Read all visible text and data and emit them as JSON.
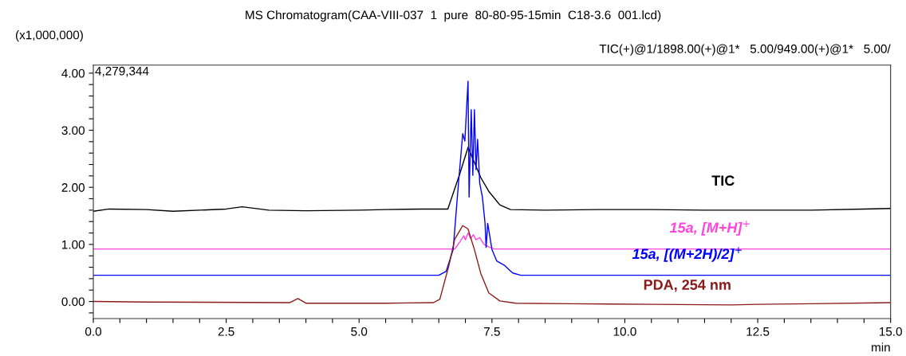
{
  "chart_data": {
    "type": "line",
    "title": "MS Chromatogram(CAA-VIII-037  1  pure  80-80-95-15min  C18-3.6  001.lcd)",
    "subtitle": "TIC(+)@1/1898.00(+)@1*   5.00/949.00(+)@1*   5.00/",
    "ylabel": "(x1,000,000)",
    "xlabel": "min",
    "annotations": [
      "4,279,344"
    ],
    "xlim": [
      0,
      15
    ],
    "ylim": [
      -0.3,
      4.14
    ],
    "xticks": [
      {
        "value": 0,
        "label": "0.0"
      },
      {
        "value": 0.5,
        "label": null
      },
      {
        "value": 1.0,
        "label": null
      },
      {
        "value": 1.5,
        "label": null
      },
      {
        "value": 2.0,
        "label": null
      },
      2.5,
      {
        "value": 3.0,
        "label": null
      },
      {
        "value": 3.5,
        "label": null
      },
      {
        "value": 4.0,
        "label": null
      },
      {
        "value": 4.5,
        "label": null
      },
      {
        "value": 5,
        "label": "5.0"
      },
      {
        "value": 5.5,
        "label": null
      },
      {
        "value": 6.0,
        "label": null
      },
      {
        "value": 6.5,
        "label": null
      },
      {
        "value": 7.0,
        "label": null
      },
      7.5,
      {
        "value": 8.0,
        "label": null
      },
      {
        "value": 8.5,
        "label": null
      },
      {
        "value": 9.0,
        "label": null
      },
      {
        "value": 9.5,
        "label": null
      },
      {
        "value": 10,
        "label": "10.0"
      },
      {
        "value": 10.5,
        "label": null
      },
      {
        "value": 11.0,
        "label": null
      },
      {
        "value": 11.5,
        "label": null
      },
      {
        "value": 12.0,
        "label": null
      },
      12.5,
      {
        "value": 13.0,
        "label": null
      },
      {
        "value": 13.5,
        "label": null
      },
      {
        "value": 14.0,
        "label": null
      },
      {
        "value": 14.5,
        "label": null
      },
      {
        "value": 15,
        "label": "15.0"
      }
    ],
    "yticks": [
      {
        "value": -0.2,
        "label": null
      },
      {
        "value": 0,
        "label": "0.00"
      },
      {
        "value": 0.2,
        "label": null
      },
      {
        "value": 0.4,
        "label": null
      },
      {
        "value": 0.6,
        "label": null
      },
      {
        "value": 0.8,
        "label": null
      },
      {
        "value": 1,
        "label": "1.00"
      },
      {
        "value": 1.2,
        "label": null
      },
      {
        "value": 1.4,
        "label": null
      },
      {
        "value": 1.6,
        "label": null
      },
      {
        "value": 1.8,
        "label": null
      },
      {
        "value": 2,
        "label": "2.00"
      },
      {
        "value": 2.2,
        "label": null
      },
      {
        "value": 2.4,
        "label": null
      },
      {
        "value": 2.6,
        "label": null
      },
      {
        "value": 2.8,
        "label": null
      },
      {
        "value": 3,
        "label": "3.00"
      },
      {
        "value": 3.2,
        "label": null
      },
      {
        "value": 3.4,
        "label": null
      },
      {
        "value": 3.6,
        "label": null
      },
      {
        "value": 3.8,
        "label": null
      },
      {
        "value": 4,
        "label": "4.00"
      }
    ],
    "grid": false,
    "legend": false,
    "marker": "none",
    "line_style": "solid",
    "series": [
      {
        "name": "TIC",
        "color": "#000000",
        "x": [
          0,
          0.3,
          1.0,
          1.5,
          2.5,
          2.8,
          3.3,
          4.0,
          5.0,
          5.5,
          6.2,
          6.5,
          6.67,
          6.9,
          7.05,
          7.29,
          7.44,
          7.65,
          7.85,
          8.5,
          9.5,
          10.5,
          11.5,
          12.5,
          13.5,
          14.5,
          15
        ],
        "values": [
          1.58,
          1.62,
          1.61,
          1.58,
          1.62,
          1.66,
          1.6,
          1.59,
          1.6,
          1.61,
          1.62,
          1.62,
          1.62,
          2.25,
          2.7,
          2.17,
          1.93,
          1.69,
          1.61,
          1.6,
          1.61,
          1.61,
          1.6,
          1.6,
          1.6,
          1.62,
          1.63
        ]
      },
      {
        "name": "15a, [M+H]$^{+}$",
        "color": "#ff44dd",
        "x": [
          0,
          6.8,
          6.9,
          6.97,
          7.0,
          7.05,
          7.1,
          7.15,
          7.2,
          7.27,
          7.35,
          7.45,
          7.55,
          15
        ],
        "values": [
          0.92,
          0.92,
          1.05,
          1.15,
          1.08,
          1.2,
          1.1,
          1.17,
          1.08,
          1.12,
          1.0,
          0.95,
          0.92,
          0.92
        ]
      },
      {
        "name": "15a, [(M+2H)/2]$^{+}$",
        "color": "#0000ff",
        "x": [
          0,
          6.5,
          6.64,
          6.77,
          6.87,
          6.95,
          6.99,
          7.05,
          7.07,
          7.11,
          7.14,
          7.17,
          7.2,
          7.23,
          7.27,
          7.32,
          7.37,
          7.39,
          7.42,
          7.5,
          7.59,
          7.74,
          7.89,
          8.04,
          15
        ],
        "values": [
          0.46,
          0.46,
          0.53,
          0.91,
          2.07,
          2.94,
          2.81,
          3.86,
          1.83,
          3.36,
          2.21,
          3.36,
          2.31,
          2.84,
          2.07,
          1.83,
          1.37,
          0.95,
          1.37,
          0.91,
          0.71,
          0.63,
          0.5,
          0.46,
          0.46
        ]
      },
      {
        "name": "PDA, 254 nm",
        "color": "#8b1a1a",
        "x": [
          0,
          1.0,
          3.7,
          3.85,
          4.0,
          5.5,
          6.4,
          6.52,
          6.69,
          6.8,
          6.95,
          7.05,
          7.17,
          7.29,
          7.44,
          7.65,
          7.95,
          9.0,
          10.5,
          12.0,
          12.5,
          13.5,
          15
        ],
        "values": [
          0.0,
          -0.01,
          -0.02,
          0.05,
          -0.03,
          -0.03,
          -0.02,
          0.04,
          0.63,
          1.09,
          1.33,
          1.27,
          0.91,
          0.49,
          0.15,
          0.01,
          -0.03,
          -0.04,
          -0.05,
          -0.06,
          -0.05,
          -0.04,
          -0.02
        ]
      }
    ]
  }
}
